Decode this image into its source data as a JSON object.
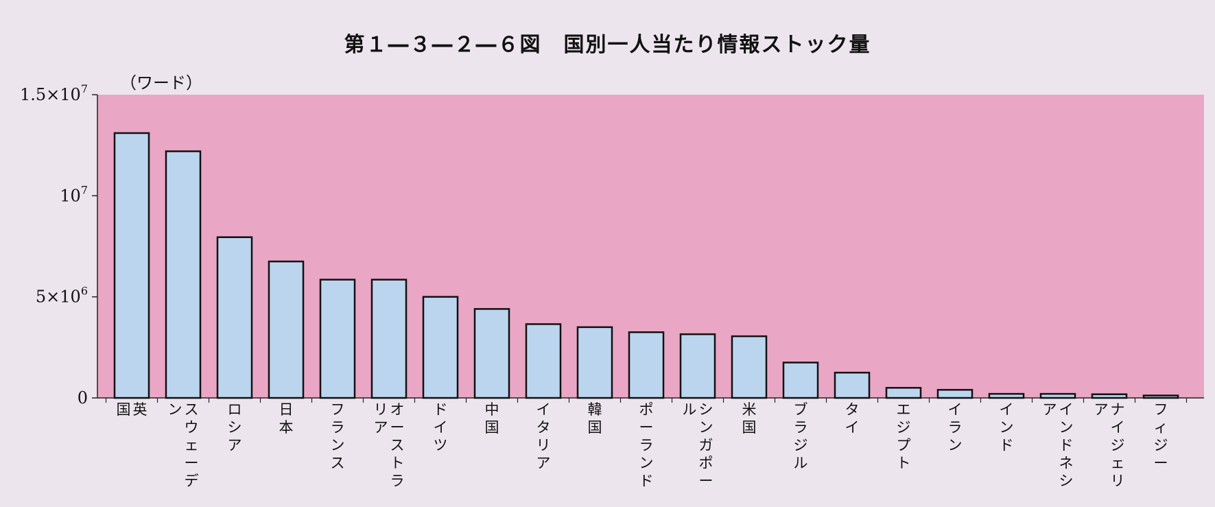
{
  "figure": {
    "title": "第１―３―２―６図　国別一人当たり情報ストック量",
    "unit_label": "（ワード）"
  },
  "colors": {
    "page_background": "#ede5ee",
    "plot_background": "#e9a6c5",
    "bar_fill": "#bcd5ef",
    "bar_stroke": "#111111"
  },
  "chart_data": {
    "type": "bar",
    "title": "第１―３―２―６図　国別一人当たり情報ストック量",
    "ylabel": "（ワード）",
    "xlabel": "",
    "ylim": [
      0,
      15000000
    ],
    "yticks": [
      {
        "value": 0,
        "label": "0"
      },
      {
        "value": 5000000,
        "label": "5×10",
        "exp": "6"
      },
      {
        "value": 10000000,
        "label": "10",
        "exp": "7"
      },
      {
        "value": 15000000,
        "label": "1.5×10",
        "exp": "7"
      }
    ],
    "categories": [
      "英国",
      "スウェーデン",
      "ロシア",
      "日本",
      "フランス",
      "オーストラリア",
      "ドイツ",
      "中国",
      "イタリア",
      "韓国",
      "ポーランド",
      "シンガポール",
      "米国",
      "ブラジル",
      "タイ",
      "エジプト",
      "イラン",
      "インド",
      "インドネシア",
      "ナイジェリア",
      "フィジー"
    ],
    "category_lines": [
      [
        [
          "英"
        ],
        [
          "国"
        ]
      ],
      [
        [
          "ス",
          "ウ",
          "ェ",
          "ー",
          "デ"
        ],
        [
          "ン"
        ]
      ],
      [
        [
          "ロ",
          "シ",
          "ア"
        ]
      ],
      [
        [
          "日",
          "本"
        ]
      ],
      [
        [
          "フ",
          "ラ",
          "ン",
          "ス"
        ]
      ],
      [
        [
          "オ",
          "ー",
          "ス",
          "ト",
          "ラ"
        ],
        [
          "リ",
          "ア"
        ]
      ],
      [
        [
          "ド",
          "イ",
          "ツ"
        ]
      ],
      [
        [
          "中",
          "国"
        ]
      ],
      [
        [
          "イ",
          "タ",
          "リ",
          "ア"
        ]
      ],
      [
        [
          "韓",
          "国"
        ]
      ],
      [
        [
          "ポ",
          "ー",
          "ラ",
          "ン",
          "ド"
        ]
      ],
      [
        [
          "シ",
          "ン",
          "ガ",
          "ポ",
          "ー"
        ],
        [
          "ル"
        ]
      ],
      [
        [
          "米",
          "国"
        ]
      ],
      [
        [
          "ブ",
          "ラ",
          "ジ",
          "ル"
        ]
      ],
      [
        [
          "タ",
          "イ"
        ]
      ],
      [
        [
          "エ",
          "ジ",
          "プ",
          "ト"
        ]
      ],
      [
        [
          "イ",
          "ラ",
          "ン"
        ]
      ],
      [
        [
          "イ",
          "ン",
          "ド"
        ]
      ],
      [
        [
          "イ",
          "ン",
          "ド",
          "ネ",
          "シ"
        ],
        [
          "ア"
        ]
      ],
      [
        [
          "ナ",
          "イ",
          "ジ",
          "ェ",
          "リ"
        ],
        [
          "ア"
        ]
      ],
      [
        [
          "フ",
          "ィ",
          "ジ",
          "ー"
        ]
      ]
    ],
    "values": [
      13100000,
      12200000,
      7950000,
      6750000,
      5850000,
      5850000,
      5000000,
      4400000,
      3650000,
      3500000,
      3250000,
      3150000,
      3050000,
      1750000,
      1250000,
      500000,
      400000,
      200000,
      200000,
      180000,
      120000
    ],
    "grid": false,
    "legend": "none"
  }
}
